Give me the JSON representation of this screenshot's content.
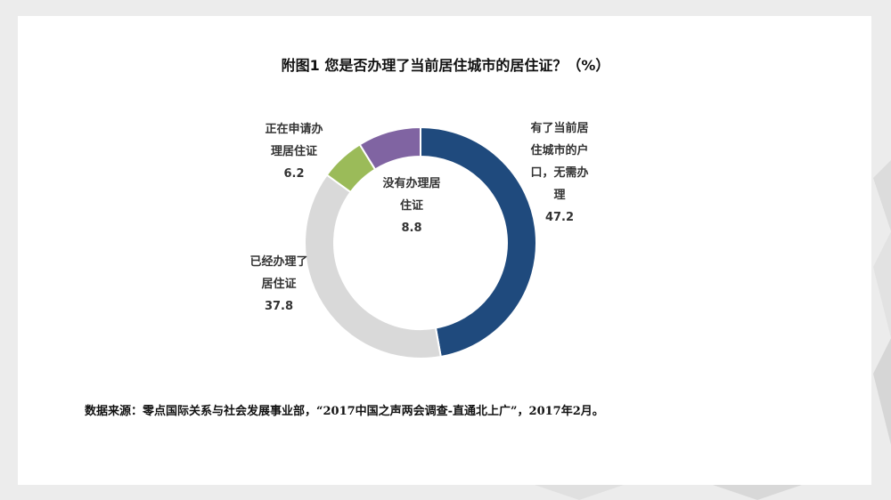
{
  "chart_data": {
    "type": "pie",
    "subtype": "donut",
    "title": "附图1  您是否办理了当前居住城市的居住证？（%）",
    "slices": [
      {
        "label_lines": [
          "有了当前居",
          "住城市的户",
          "口，无需办",
          "理"
        ],
        "value": 47.2,
        "value_label": "47.2",
        "color": "#1f4a7d"
      },
      {
        "label_lines": [
          "已经办理了",
          "居住证"
        ],
        "value": 37.8,
        "value_label": "37.8",
        "color": "#d9d9d9"
      },
      {
        "label_lines": [
          "正在申请办",
          "理居住证"
        ],
        "value": 6.2,
        "value_label": "6.2",
        "color": "#9bbb59"
      },
      {
        "label_lines": [
          "没有办理居",
          "住证"
        ],
        "value": 8.8,
        "value_label": "8.8",
        "color": "#8064a2"
      }
    ],
    "source": "数据来源：零点国际关系与社会发展事业部，“2017中国之声两会调查-直通北上广”，2017年2月。"
  }
}
